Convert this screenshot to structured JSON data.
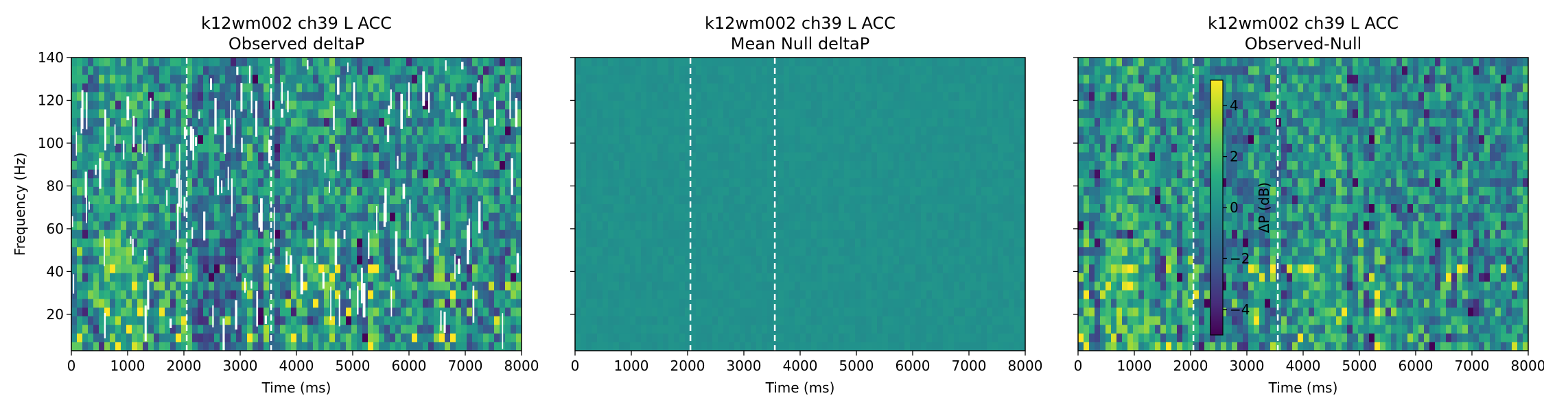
{
  "chart_data": [
    {
      "type": "heatmap",
      "title": [
        "k12wm002 ch39 L ACC",
        "Observed deltaP"
      ],
      "xlabel": "Time (ms)",
      "ylabel": "Frequency (Hz)",
      "xlim": [
        0,
        8000
      ],
      "ylim": [
        3,
        140
      ],
      "xticks": [
        0,
        1000,
        2000,
        3000,
        4000,
        5000,
        6000,
        7000,
        8000
      ],
      "yticks": [
        20,
        40,
        60,
        80,
        100,
        120,
        140
      ],
      "show_ytick_labels": true,
      "markers_x": [
        2050,
        3550
      ],
      "masked_gaps": true,
      "pattern": "observed"
    },
    {
      "type": "heatmap",
      "title": [
        "k12wm002 ch39 L ACC",
        "Mean Null deltaP"
      ],
      "xlabel": "Time (ms)",
      "ylabel": "",
      "xlim": [
        0,
        8000
      ],
      "ylim": [
        3,
        140
      ],
      "xticks": [
        0,
        1000,
        2000,
        3000,
        4000,
        5000,
        6000,
        7000,
        8000
      ],
      "yticks": [
        20,
        40,
        60,
        80,
        100,
        120,
        140
      ],
      "show_ytick_labels": false,
      "markers_x": [
        2050,
        3550
      ],
      "masked_gaps": false,
      "pattern": "null"
    },
    {
      "type": "heatmap",
      "title": [
        "k12wm002 ch39 L ACC",
        "Observed-Null"
      ],
      "xlabel": "Time (ms)",
      "ylabel": "",
      "xlim": [
        0,
        8000
      ],
      "ylim": [
        3,
        140
      ],
      "xticks": [
        0,
        1000,
        2000,
        3000,
        4000,
        5000,
        6000,
        7000,
        8000
      ],
      "yticks": [
        20,
        40,
        60,
        80,
        100,
        120,
        140
      ],
      "show_ytick_labels": false,
      "markers_x": [
        2050,
        3550
      ],
      "masked_gaps": false,
      "pattern": "diff",
      "colorbar": {
        "label": "ΔP (dB)",
        "range": [
          -5,
          5
        ],
        "ticks": [
          -4,
          -2,
          0,
          2,
          4
        ],
        "tick_labels": [
          "−4",
          "−2",
          "0",
          "2",
          "4"
        ],
        "colormap": "viridis"
      }
    }
  ]
}
